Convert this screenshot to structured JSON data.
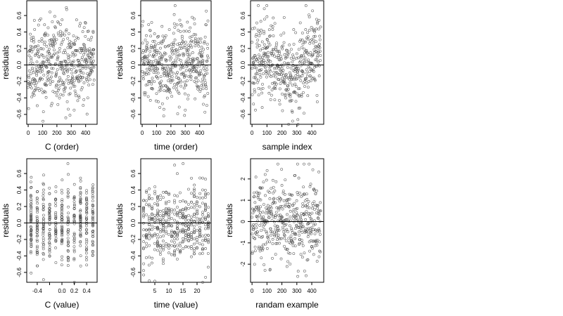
{
  "chart_data": [
    {
      "type": "scatter",
      "xlabel": "C (order)",
      "ylabel": "residuals",
      "xlim": [
        -10,
        480
      ],
      "ylim": [
        -0.72,
        0.78
      ],
      "xticks": [
        0,
        100,
        200,
        300,
        400
      ],
      "yticks": [
        -0.6,
        -0.4,
        -0.2,
        0.0,
        0.2,
        0.4,
        0.6
      ],
      "hline": 0,
      "n_points": 460,
      "x_pattern": "index",
      "point_style": "open circle",
      "grid": false,
      "seed": 11
    },
    {
      "type": "scatter",
      "xlabel": "time (order)",
      "ylabel": "residuals",
      "xlim": [
        -10,
        480
      ],
      "ylim": [
        -0.72,
        0.78
      ],
      "xticks": [
        0,
        100,
        200,
        300,
        400
      ],
      "yticks": [
        -0.6,
        -0.4,
        -0.2,
        0.0,
        0.2,
        0.4,
        0.6
      ],
      "hline": 0,
      "n_points": 460,
      "x_pattern": "index",
      "point_style": "open circle",
      "grid": false,
      "seed": 23
    },
    {
      "type": "scatter",
      "xlabel": "sample index",
      "ylabel": "residuals",
      "xlim": [
        -10,
        480
      ],
      "ylim": [
        -0.72,
        0.78
      ],
      "xticks": [
        0,
        100,
        200,
        300,
        400
      ],
      "yticks": [
        -0.6,
        -0.4,
        -0.2,
        0.0,
        0.2,
        0.4,
        0.6
      ],
      "hline": 0,
      "n_points": 460,
      "x_pattern": "index-wavy",
      "point_style": "open circle",
      "grid": false,
      "seed": 37
    },
    {
      "type": "scatter",
      "xlabel": "C (value)",
      "ylabel": "residuals",
      "xlim": [
        -0.57,
        0.57
      ],
      "ylim": [
        -0.72,
        0.78
      ],
      "xticks": [
        -0.4,
        0.0,
        0.2,
        0.4
      ],
      "xtick_labels": [
        "-0.4",
        "0.0",
        "0.2",
        "0.4"
      ],
      "xtick_minor": [
        -0.2
      ],
      "yticks": [
        -0.6,
        -0.4,
        -0.2,
        0.0,
        0.2,
        0.4,
        0.6
      ],
      "hline": 0,
      "n_points": 460,
      "x_pattern": "discrete",
      "x_levels": [
        -0.5,
        -0.4,
        -0.3,
        -0.2,
        -0.1,
        0.0,
        0.1,
        0.2,
        0.3,
        0.4,
        0.5
      ],
      "point_style": "open circle",
      "grid": false,
      "seed": 53
    },
    {
      "type": "scatter",
      "xlabel": "time (value)",
      "ylabel": "residuals",
      "xlim": [
        0,
        25
      ],
      "ylim": [
        -0.72,
        0.78
      ],
      "xticks": [
        5,
        10,
        15,
        20
      ],
      "yticks": [
        -0.6,
        -0.4,
        -0.2,
        0.0,
        0.2,
        0.4,
        0.6
      ],
      "hline": 0,
      "n_points": 460,
      "x_pattern": "discrete",
      "x_levels": [
        1,
        2,
        3,
        4,
        5,
        6,
        7,
        8,
        9,
        10,
        11,
        12,
        13,
        14,
        15,
        16,
        17,
        18,
        19,
        20,
        21,
        22,
        23,
        24
      ],
      "point_style": "open circle",
      "grid": false,
      "seed": 71
    },
    {
      "type": "scatter",
      "xlabel": "randam example",
      "ylabel": "residuals",
      "xlim": [
        -10,
        480
      ],
      "ylim": [
        -2.85,
        2.95
      ],
      "xticks": [
        0,
        100,
        200,
        300,
        400
      ],
      "yticks": [
        -2,
        -1,
        0,
        1,
        2
      ],
      "hline": 0,
      "n_points": 460,
      "x_pattern": "index",
      "point_style": "open circle",
      "grid": false,
      "seed": 97
    }
  ]
}
